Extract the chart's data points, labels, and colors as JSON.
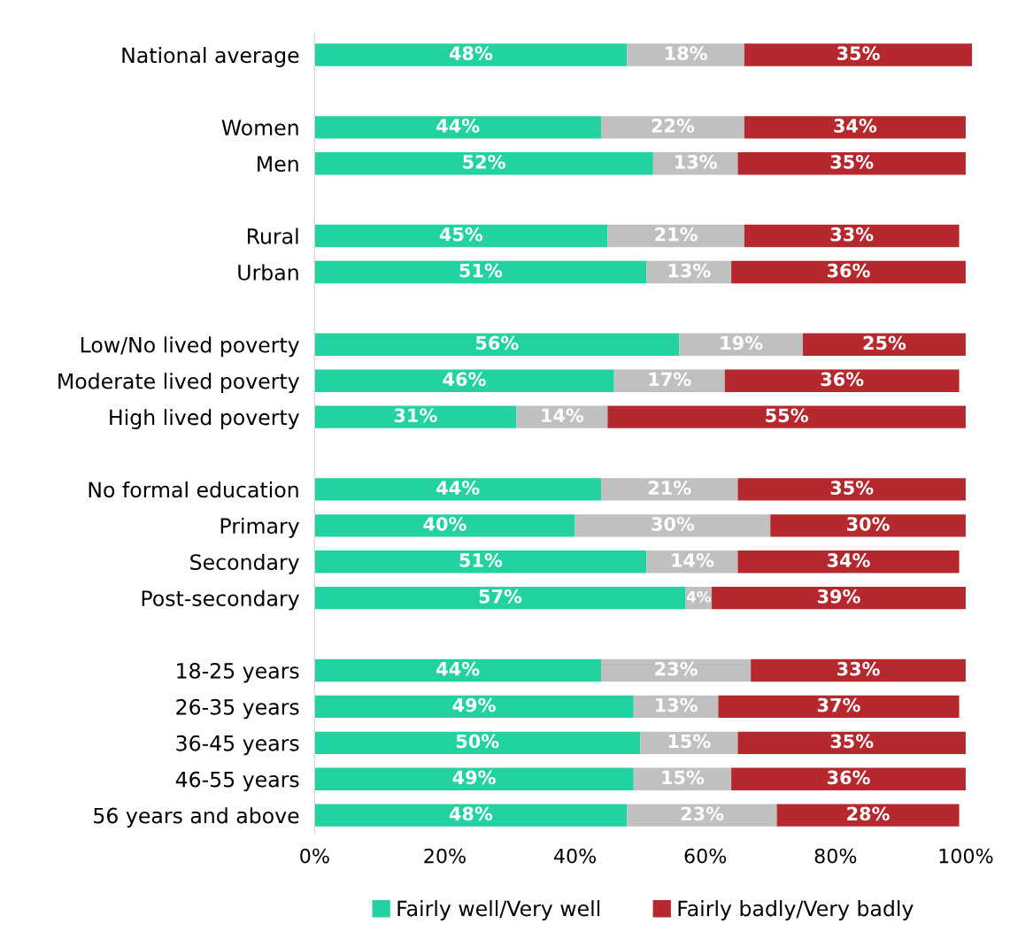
{
  "chart_data": {
    "type": "bar",
    "orientation": "horizontal",
    "stacked": true,
    "grid": false,
    "legend": "bottom",
    "categories": [
      "National average",
      null,
      "Women",
      "Men",
      null,
      "Rural",
      "Urban",
      null,
      "Low/No lived poverty",
      "Moderate lived poverty",
      "High lived poverty",
      null,
      "No formal education",
      "Primary",
      "Secondary",
      "Post-secondary",
      null,
      "18-25 years",
      "26-35 years",
      "36-45 years",
      "46-55 years",
      "56 years and above"
    ],
    "series": [
      {
        "name": "Fairly well/Very well",
        "color": "#22d3a1",
        "values": [
          48,
          null,
          44,
          52,
          null,
          45,
          51,
          null,
          56,
          46,
          31,
          null,
          44,
          40,
          51,
          57,
          null,
          44,
          49,
          50,
          49,
          48
        ],
        "value_labels": [
          "48%",
          null,
          "44%",
          "52%",
          null,
          "45%",
          "51%",
          null,
          "56%",
          "46%",
          "31%",
          null,
          "44%",
          "40%",
          "51%",
          "57%",
          null,
          "44%",
          "49%",
          "50%",
          "49%",
          "48%"
        ]
      },
      {
        "color": "#c0c0c0",
        "values": [
          18,
          null,
          22,
          13,
          null,
          21,
          13,
          null,
          19,
          17,
          14,
          null,
          21,
          30,
          14,
          4,
          null,
          23,
          13,
          15,
          15,
          23
        ],
        "value_labels": [
          "18%",
          null,
          "22%",
          "13%",
          null,
          "21%",
          "13%",
          null,
          "19%",
          "17%",
          "14%",
          null,
          "21%",
          "30%",
          "14%",
          "4%",
          null,
          "23%",
          "13%",
          "15%",
          "15%",
          "23%"
        ]
      },
      {
        "name": "Fairly badly/Very badly",
        "color": "#b5282e",
        "values": [
          35,
          null,
          34,
          35,
          null,
          33,
          36,
          null,
          25,
          36,
          55,
          null,
          35,
          30,
          34,
          39,
          null,
          33,
          37,
          35,
          36,
          28
        ],
        "value_labels": [
          "35%",
          null,
          "34%",
          "35%",
          null,
          "33%",
          "36%",
          null,
          "25%",
          "36%",
          "55%",
          null,
          "35%",
          "30%",
          "34%",
          "39%",
          null,
          "33%",
          "37%",
          "35%",
          "36%",
          "28%"
        ]
      }
    ],
    "xlim": [
      0,
      101
    ],
    "xticks": [
      {
        "value": 0,
        "label": "0%"
      },
      {
        "value": 20,
        "label": "20%"
      },
      {
        "value": 40,
        "label": "40%"
      },
      {
        "value": 60,
        "label": "60%"
      },
      {
        "value": 80,
        "label": "80%"
      },
      {
        "value": 100,
        "label": "100%"
      }
    ]
  }
}
